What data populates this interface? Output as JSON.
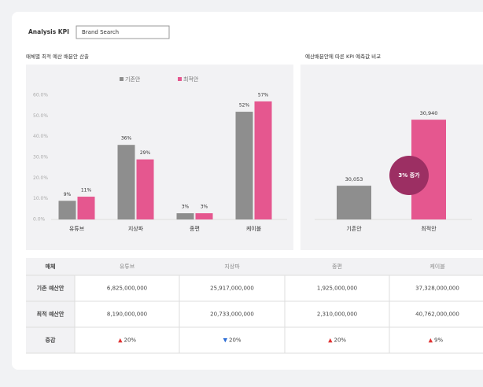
{
  "header": {
    "title": "Analysis KPI",
    "input": "Brand Search"
  },
  "chart_data": [
    {
      "type": "bar",
      "title": "매체별 최적 예산 배분안 산출",
      "categories": [
        "유튜브",
        "지상파",
        "종편",
        "케이블"
      ],
      "series": [
        {
          "name": "기존안",
          "color": "#8e8e8e",
          "values": [
            9,
            36,
            3,
            52
          ],
          "value_labels": [
            "9%",
            "36%",
            "3%",
            "52%"
          ]
        },
        {
          "name": "최적안",
          "color": "#e5578f",
          "values": [
            11,
            29,
            3,
            57
          ],
          "value_labels": [
            "11%",
            "29%",
            "3%",
            "57%"
          ]
        }
      ],
      "ylim": [
        0,
        60
      ],
      "yticks": [
        {
          "value": 0,
          "label": "0.0%"
        },
        {
          "value": 10,
          "label": "10.0%"
        },
        {
          "value": 20,
          "label": "20.0%"
        },
        {
          "value": 30,
          "label": "30.0%"
        },
        {
          "value": 40,
          "label": "40.0%"
        },
        {
          "value": 50,
          "label": "50.0%"
        },
        {
          "value": 60,
          "label": "60.0%"
        }
      ],
      "legend": "top"
    },
    {
      "type": "bar",
      "title": "예산배분안에 따른 KPI 예측값 비교",
      "categories": [
        "기존안",
        "최적안"
      ],
      "values": [
        30053,
        30940
      ],
      "value_labels": [
        "30,053",
        "30,940"
      ],
      "colors": [
        "#8e8e8e",
        "#e5578f"
      ],
      "ylim": [
        29600,
        31100
      ],
      "annotation": "3% 증가",
      "annotation_color": "#9c2f63"
    }
  ],
  "table": {
    "header": [
      "매체",
      "유튜브",
      "지상파",
      "종편",
      "케이블"
    ],
    "rows": [
      [
        "기존 예산안",
        "6,825,000,000",
        "25,917,000,000",
        "1,925,000,000",
        "37,328,000,000"
      ],
      [
        "최적 예산안",
        "8,190,000,000",
        "20,733,000,000",
        "2,310,000,000",
        "40,762,000,000"
      ]
    ],
    "change_label": "증감",
    "change": [
      {
        "arrow": "▲",
        "color": "#e03131",
        "text": "20%"
      },
      {
        "arrow": "▼",
        "color": "#2f6fd6",
        "text": "20%"
      },
      {
        "arrow": "▲",
        "color": "#e03131",
        "text": "20%"
      },
      {
        "arrow": "▲",
        "color": "#e03131",
        "text": "9%"
      }
    ]
  }
}
